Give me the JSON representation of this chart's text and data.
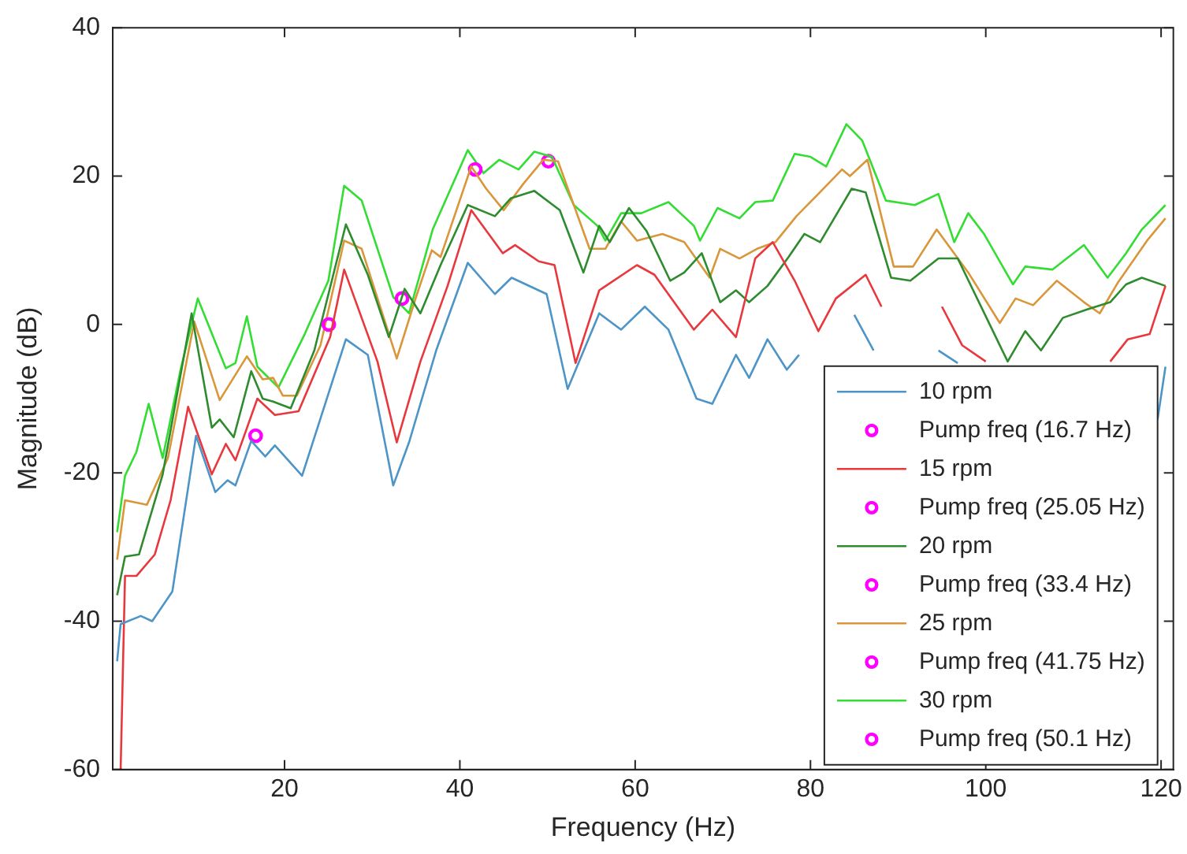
{
  "chart_data": {
    "type": "line",
    "xlabel": "Frequency (Hz)",
    "ylabel": "Magnitude (dB)",
    "xlim": [
      0.4,
      121.4
    ],
    "ylim": [
      -60,
      40
    ],
    "xticks": [
      20,
      40,
      60,
      80,
      100,
      120
    ],
    "yticks": [
      -60,
      -40,
      -20,
      0,
      20,
      40
    ],
    "grid": false,
    "legend": "bottom right",
    "marker": "none",
    "series": [
      {
        "name": "10 rpm",
        "color": "#4d94c7",
        "x": [
          0.9,
          1.3,
          3.6,
          4.9,
          7.2,
          9.9,
          12.1,
          13.5,
          14.4,
          16.2,
          17.8,
          18.9,
          22,
          27,
          29.5,
          32.4,
          34.2,
          37.3,
          40.9,
          44,
          45.9,
          49.9,
          52.3,
          55.9,
          58.4,
          61.1,
          63.8,
          67,
          68.8,
          71.5,
          73,
          75.1,
          77.3,
          78.7,
          82,
          85,
          87.2,
          91,
          94.6,
          96.8,
          108,
          119.6,
          120.5
        ],
        "values": [
          -45.4,
          -40.4,
          -39.3,
          -40,
          -36,
          -15,
          -22.6,
          -21,
          -21.7,
          -15.7,
          -17.8,
          -16.3,
          -20.4,
          -2,
          -4.1,
          -21.7,
          -15.9,
          -3.5,
          8.3,
          4.1,
          6.3,
          4.1,
          -8.7,
          1.5,
          -0.7,
          2.4,
          -0.7,
          -10,
          -10.7,
          -4.1,
          -7.2,
          -2,
          -6.1,
          -4.1,
          null,
          1.3,
          -3.5,
          null,
          -3.5,
          -5.2,
          null,
          -12.8,
          -5.7
        ]
      },
      {
        "name": "Pump freq (16.7 Hz)",
        "type": "scatter",
        "marker": "circle",
        "color": "#ff00ff",
        "x": [
          16.7
        ],
        "values": [
          -15
        ]
      },
      {
        "name": "15 rpm",
        "color": "#e8383d",
        "x": [
          1.3,
          1.8,
          3.1,
          5.2,
          7,
          9,
          11.7,
          13.3,
          14.4,
          16.9,
          18.9,
          21.6,
          25.2,
          26.8,
          30.6,
          32.8,
          35.5,
          38.6,
          41.3,
          44.9,
          46.3,
          49,
          50.8,
          53.2,
          55.9,
          60.2,
          62.2,
          66.7,
          68.8,
          71.5,
          73.7,
          75.7,
          78.2,
          80.9,
          82.9,
          86.3,
          88.1,
          91,
          95,
          97.3,
          100,
          107,
          114.2,
          116.2,
          118.7,
          120.5
        ],
        "values": [
          -60,
          -33.9,
          -33.9,
          -31,
          -23.7,
          -11.1,
          -20.2,
          -16.1,
          -18.3,
          -10,
          -12.2,
          -11.7,
          -1.7,
          7.4,
          -5,
          -15.9,
          -5,
          5.2,
          15.4,
          9.6,
          10.7,
          8.5,
          8,
          -5.2,
          4.6,
          8,
          6.7,
          -0.7,
          2,
          -1.7,
          8.9,
          11.1,
          5.9,
          -0.9,
          3.5,
          6.7,
          2.4,
          null,
          2.4,
          -2.8,
          -5,
          null,
          -5,
          -2,
          -1.3,
          5.2
        ]
      },
      {
        "name": "Pump freq (25.05 Hz)",
        "type": "scatter",
        "marker": "circle",
        "color": "#ff00ff",
        "x": [
          25.05
        ],
        "values": [
          0
        ]
      },
      {
        "name": "20 rpm",
        "color": "#2e8b2e",
        "x": [
          0.9,
          1.8,
          3.4,
          6.1,
          9.4,
          11.7,
          12.6,
          14.2,
          16.2,
          17.5,
          18.7,
          20.7,
          23.4,
          27,
          29.5,
          31.9,
          33.7,
          35.5,
          37.8,
          40.9,
          44,
          45.8,
          48.5,
          51.4,
          54.1,
          55.9,
          57.1,
          59.3,
          61.3,
          64,
          65.6,
          67.6,
          69.7,
          71.5,
          73,
          75.1,
          77.5,
          79.3,
          81.1,
          84.7,
          86.3,
          89.2,
          91.4,
          94.6,
          96.8,
          102.5,
          104.5,
          106.3,
          108.8,
          111.5,
          114.2,
          116,
          117.8,
          120.5
        ],
        "values": [
          -36.5,
          -31.3,
          -31,
          -20.2,
          1.5,
          -13.9,
          -12.8,
          -15.2,
          -6.3,
          -10,
          -10.4,
          -11.3,
          -3.5,
          13.5,
          6.7,
          -1.7,
          4.8,
          1.5,
          8,
          16.1,
          14.6,
          17,
          18,
          15.4,
          7,
          13.3,
          11.1,
          15.7,
          12.6,
          5.9,
          7,
          9.6,
          3,
          4.6,
          3,
          5.2,
          9.1,
          12.2,
          11.1,
          18.3,
          17.8,
          6.3,
          5.9,
          8.9,
          8.9,
          -5,
          -0.9,
          -3.5,
          0.9,
          2,
          3,
          5.4,
          6.3,
          5.2
        ]
      },
      {
        "name": "Pump freq (33.4 Hz)",
        "type": "scatter",
        "marker": "circle",
        "color": "#ff00ff",
        "x": [
          33.4
        ],
        "values": [
          3.5
        ]
      },
      {
        "name": "25 rpm",
        "color": "#d9963a",
        "x": [
          0.9,
          1.8,
          4.3,
          6.7,
          9.7,
          12.6,
          15.7,
          17.5,
          18.7,
          19.8,
          21.4,
          24.1,
          26.8,
          28.8,
          32.8,
          35,
          36.8,
          37.8,
          41.3,
          43,
          45,
          47.2,
          49.5,
          51.2,
          54.8,
          56.6,
          58.4,
          60.2,
          63.1,
          65.6,
          68.5,
          69.7,
          71.9,
          73.9,
          76,
          78.4,
          80.9,
          83.6,
          84.5,
          86.5,
          89.5,
          91.7,
          94.4,
          98,
          101.6,
          103.4,
          105.4,
          108.1,
          111.2,
          113,
          115.1,
          118.4,
          120.5
        ],
        "values": [
          -31.7,
          -23.7,
          -24.3,
          -18,
          0.4,
          -10.2,
          -4.3,
          -7.4,
          -7.2,
          -9.6,
          -9.6,
          -2.8,
          11.3,
          10.2,
          -4.6,
          3.7,
          10,
          9.1,
          21.3,
          18.3,
          15.4,
          18.9,
          22.2,
          22,
          10.2,
          10.2,
          13.9,
          11.3,
          12.2,
          11.1,
          6.3,
          10.2,
          8.9,
          10.2,
          11.1,
          14.6,
          17.6,
          20.9,
          20,
          22.2,
          7.8,
          7.8,
          12.8,
          7,
          0.2,
          3.5,
          2.6,
          5.9,
          3,
          1.5,
          5.7,
          11.3,
          14.3
        ]
      },
      {
        "name": "Pump freq (41.75 Hz)",
        "type": "scatter",
        "marker": "circle",
        "color": "#ff00ff",
        "x": [
          41.75
        ],
        "values": [
          20.9
        ]
      },
      {
        "name": "30 rpm",
        "color": "#33dd33",
        "x": [
          0.9,
          1.8,
          3.1,
          4.5,
          6.1,
          8.1,
          10.1,
          13.3,
          14.4,
          15.7,
          16.9,
          19.3,
          22.3,
          25,
          26.8,
          28.8,
          32.4,
          34.2,
          36.9,
          40.9,
          42.7,
          44.5,
          46.7,
          48.5,
          50.5,
          53,
          55.7,
          56.6,
          58.4,
          60.7,
          63.8,
          66.7,
          67.4,
          69.4,
          71.9,
          73.7,
          75.7,
          78.2,
          80,
          81.8,
          84.1,
          85.9,
          88.6,
          91.9,
          94.6,
          96.4,
          98,
          99.8,
          103.1,
          104.5,
          107.6,
          111.2,
          113.9,
          116,
          117.8,
          120.5
        ],
        "values": [
          -28,
          -20.4,
          -17.2,
          -10.7,
          -18,
          -6.3,
          3.5,
          -5.9,
          -5.2,
          1.1,
          -5.7,
          -8.5,
          -1.3,
          5.9,
          18.7,
          16.7,
          3.7,
          1.5,
          12.8,
          23.5,
          20.4,
          22.2,
          20.9,
          23.3,
          22.6,
          16.1,
          13.3,
          11.3,
          15,
          15,
          16.5,
          13.3,
          11.3,
          15.7,
          14.3,
          16.5,
          16.7,
          23,
          22.6,
          21.3,
          27,
          24.8,
          16.7,
          16.1,
          17.6,
          11.1,
          15,
          12.2,
          5.4,
          7.8,
          7.4,
          10.7,
          6.3,
          9.6,
          12.8,
          16.1
        ]
      },
      {
        "name": "Pump freq (50.1 Hz)",
        "type": "scatter",
        "marker": "circle",
        "color": "#ff00ff",
        "x": [
          50.1
        ],
        "values": [
          22
        ]
      }
    ]
  }
}
